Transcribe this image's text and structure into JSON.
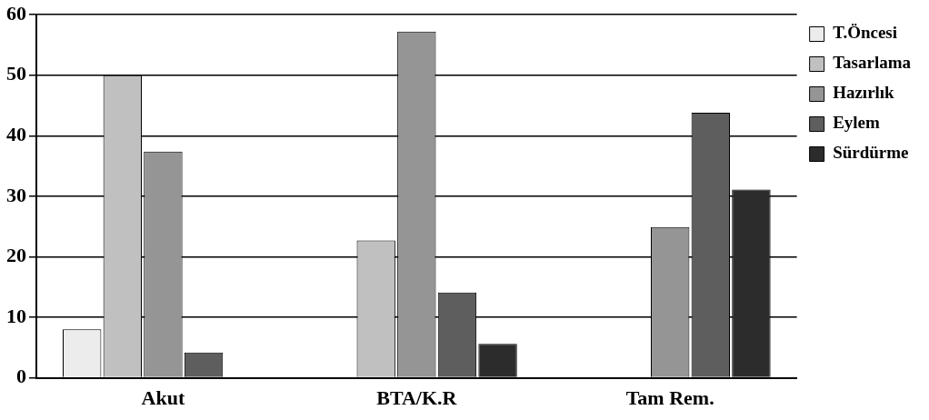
{
  "chart_data": {
    "type": "bar",
    "categories": [
      "Akut",
      "BTA/K.R",
      "Tam Rem."
    ],
    "series": [
      {
        "name": "T.Öncesi",
        "color": "#ececec",
        "values": [
          8,
          0,
          0
        ]
      },
      {
        "name": "Tasarlama",
        "color": "#c0c0c0",
        "values": [
          50,
          22.7,
          0
        ]
      },
      {
        "name": "Hazırlık",
        "color": "#959595",
        "values": [
          37.4,
          57.2,
          24.9
        ]
      },
      {
        "name": "Eylem",
        "color": "#5e5e5e",
        "values": [
          4.2,
          14.1,
          43.8
        ]
      },
      {
        "name": "Sürdürme",
        "color": "#2c2c2c",
        "values": [
          0,
          5.6,
          31.1
        ]
      }
    ],
    "ylim": [
      0,
      60
    ],
    "yticks": [
      0,
      10,
      20,
      30,
      40,
      50,
      60
    ],
    "grid": "y",
    "legend": "right"
  }
}
